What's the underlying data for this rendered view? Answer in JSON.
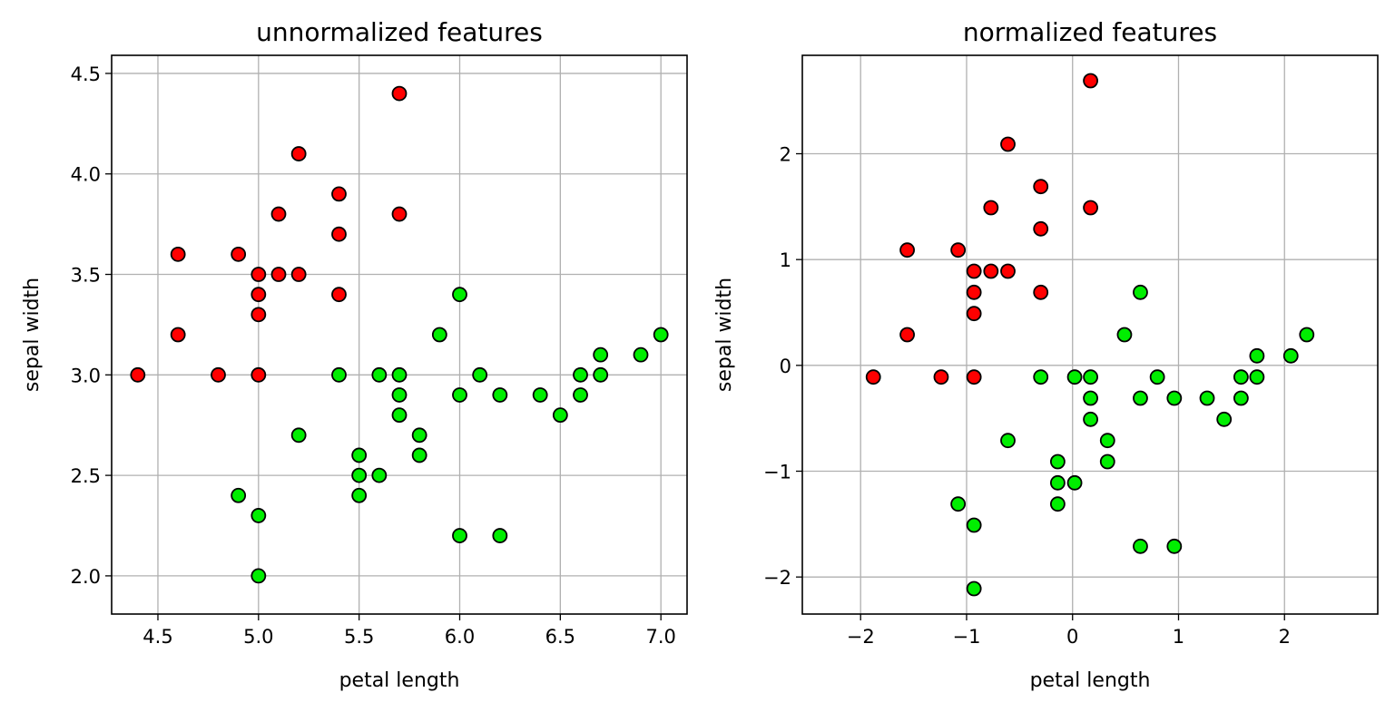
{
  "chart_data": [
    {
      "type": "scatter",
      "title": "unnormalized features",
      "xlabel": "petal length",
      "ylabel": "sepal width",
      "xlim": [
        4.27,
        7.13
      ],
      "ylim": [
        1.81,
        4.59
      ],
      "xticks": [
        4.5,
        5.0,
        5.5,
        6.0,
        6.5,
        7.0
      ],
      "xtick_labels": [
        "4.5",
        "5.0",
        "5.5",
        "6.0",
        "6.5",
        "7.0"
      ],
      "yticks": [
        2.0,
        2.5,
        3.0,
        3.5,
        4.0,
        4.5
      ],
      "ytick_labels": [
        "2.0",
        "2.5",
        "3.0",
        "3.5",
        "4.0",
        "4.5"
      ],
      "grid": true,
      "series": [
        {
          "color": "#ff0000",
          "points": [
            [
              4.4,
              3.0
            ],
            [
              4.6,
              3.6
            ],
            [
              4.6,
              3.2
            ],
            [
              4.8,
              3.0
            ],
            [
              4.9,
              3.6
            ],
            [
              5.0,
              3.5
            ],
            [
              5.0,
              3.4
            ],
            [
              5.0,
              3.3
            ],
            [
              5.0,
              3.0
            ],
            [
              5.1,
              3.8
            ],
            [
              5.1,
              3.5
            ],
            [
              5.2,
              4.1
            ],
            [
              5.2,
              3.5
            ],
            [
              5.4,
              3.9
            ],
            [
              5.4,
              3.7
            ],
            [
              5.4,
              3.4
            ],
            [
              5.7,
              4.4
            ],
            [
              5.7,
              3.8
            ]
          ]
        },
        {
          "color": "#00ee00",
          "points": [
            [
              4.9,
              2.4
            ],
            [
              5.0,
              2.3
            ],
            [
              5.0,
              2.0
            ],
            [
              5.2,
              2.7
            ],
            [
              5.4,
              3.0
            ],
            [
              5.5,
              2.6
            ],
            [
              5.5,
              2.5
            ],
            [
              5.5,
              2.4
            ],
            [
              5.6,
              3.0
            ],
            [
              5.6,
              2.5
            ],
            [
              5.7,
              3.0
            ],
            [
              5.7,
              2.9
            ],
            [
              5.7,
              2.8
            ],
            [
              5.8,
              2.7
            ],
            [
              5.8,
              2.6
            ],
            [
              5.9,
              3.2
            ],
            [
              6.0,
              3.4
            ],
            [
              6.0,
              2.9
            ],
            [
              6.0,
              2.2
            ],
            [
              6.1,
              3.0
            ],
            [
              6.2,
              2.9
            ],
            [
              6.2,
              2.2
            ],
            [
              6.4,
              2.9
            ],
            [
              6.5,
              2.8
            ],
            [
              6.6,
              3.0
            ],
            [
              6.6,
              2.9
            ],
            [
              6.7,
              3.1
            ],
            [
              6.7,
              3.0
            ],
            [
              6.9,
              3.1
            ],
            [
              7.0,
              3.2
            ]
          ]
        }
      ]
    },
    {
      "type": "scatter",
      "title": "normalized features",
      "xlabel": "petal length",
      "ylabel": "sepal width",
      "xlim": [
        -2.55,
        2.88
      ],
      "ylim": [
        -2.35,
        2.93
      ],
      "xticks": [
        -2,
        -1,
        0,
        1,
        2
      ],
      "xtick_labels": [
        "−2",
        "−1",
        "0",
        "1",
        "2"
      ],
      "yticks": [
        -2,
        -1,
        0,
        1,
        2
      ],
      "ytick_labels": [
        "−2",
        "−1",
        "0",
        "1",
        "2"
      ],
      "grid": true,
      "series": [
        {
          "color": "#ff0000",
          "points": [
            [
              -1.88,
              -0.11
            ],
            [
              -1.56,
              1.09
            ],
            [
              -1.56,
              0.29
            ],
            [
              -1.24,
              -0.11
            ],
            [
              -1.08,
              1.09
            ],
            [
              -0.93,
              0.89
            ],
            [
              -0.93,
              0.69
            ],
            [
              -0.93,
              0.49
            ],
            [
              -0.93,
              -0.11
            ],
            [
              -0.77,
              1.49
            ],
            [
              -0.77,
              0.89
            ],
            [
              -0.61,
              2.09
            ],
            [
              -0.61,
              0.89
            ],
            [
              -0.3,
              1.69
            ],
            [
              -0.3,
              1.29
            ],
            [
              -0.3,
              0.69
            ],
            [
              0.17,
              2.69
            ],
            [
              0.17,
              1.49
            ]
          ]
        },
        {
          "color": "#00ee00",
          "points": [
            [
              -1.08,
              -1.31
            ],
            [
              -0.93,
              -1.51
            ],
            [
              -0.93,
              -2.11
            ],
            [
              -0.61,
              -0.71
            ],
            [
              -0.3,
              -0.11
            ],
            [
              -0.14,
              -0.91
            ],
            [
              -0.14,
              -1.11
            ],
            [
              -0.14,
              -1.31
            ],
            [
              0.02,
              -0.11
            ],
            [
              0.02,
              -1.11
            ],
            [
              0.17,
              -0.11
            ],
            [
              0.17,
              -0.31
            ],
            [
              0.17,
              -0.51
            ],
            [
              0.33,
              -0.71
            ],
            [
              0.33,
              -0.91
            ],
            [
              0.49,
              0.29
            ],
            [
              0.64,
              0.69
            ],
            [
              0.64,
              -0.31
            ],
            [
              0.64,
              -1.71
            ],
            [
              0.8,
              -0.11
            ],
            [
              0.96,
              -0.31
            ],
            [
              0.96,
              -1.71
            ],
            [
              1.27,
              -0.31
            ],
            [
              1.43,
              -0.51
            ],
            [
              1.59,
              -0.11
            ],
            [
              1.59,
              -0.31
            ],
            [
              1.74,
              0.09
            ],
            [
              1.74,
              -0.11
            ],
            [
              2.06,
              0.09
            ],
            [
              2.21,
              0.29
            ]
          ]
        }
      ]
    }
  ]
}
